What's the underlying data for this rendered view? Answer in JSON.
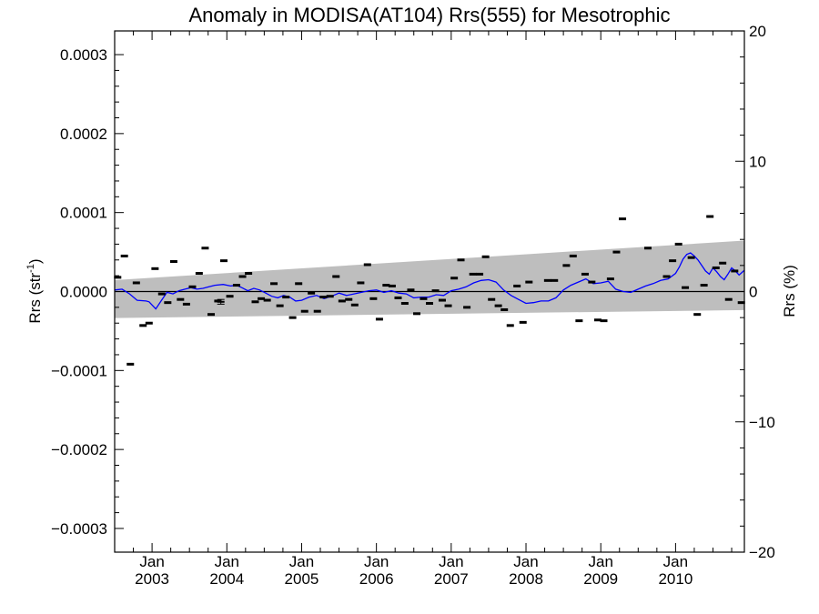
{
  "chart_data": {
    "type": "scatter",
    "title": "Anomaly in MODISA(AT104) Rrs(555) for Mesotrophic",
    "ylabel_left": "Rrs (str",
    "ylabel_left_sup": "-1",
    "ylabel_left_close": ")",
    "ylabel_right": "Rrs (%)",
    "xlim": [
      2002.5,
      2010.92
    ],
    "ylim": [
      -0.00033,
      0.00033
    ],
    "ylim_right": [
      -20,
      20
    ],
    "x_ticks": [
      {
        "month": "Jan",
        "year": "2003",
        "x": 2003.0
      },
      {
        "month": "Jan",
        "year": "2004",
        "x": 2004.0
      },
      {
        "month": "Jan",
        "year": "2005",
        "x": 2005.0
      },
      {
        "month": "Jan",
        "year": "2006",
        "x": 2006.0
      },
      {
        "month": "Jan",
        "year": "2007",
        "x": 2007.0
      },
      {
        "month": "Jan",
        "year": "2008",
        "x": 2008.0
      },
      {
        "month": "Jan",
        "year": "2009",
        "x": 2009.0
      },
      {
        "month": "Jan",
        "year": "2010",
        "x": 2010.0
      }
    ],
    "y_ticks_left": [
      {
        "value": 0.0003,
        "label": "0.0003"
      },
      {
        "value": 0.0002,
        "label": "0.0002"
      },
      {
        "value": 0.0001,
        "label": "0.0001"
      },
      {
        "value": 0.0,
        "label": "0.0000"
      },
      {
        "value": -0.0001,
        "label": "−0.0001"
      },
      {
        "value": -0.0002,
        "label": "−0.0002"
      },
      {
        "value": -0.0003,
        "label": "−0.0003"
      }
    ],
    "y_ticks_right": [
      {
        "value": 20,
        "label": "20"
      },
      {
        "value": 10,
        "label": "10"
      },
      {
        "value": 0,
        "label": "0"
      },
      {
        "value": -10,
        "label": "−10"
      },
      {
        "value": -20,
        "label": "−20"
      }
    ],
    "uncertainty_band": {
      "color": "#bebebe",
      "x": [
        2002.5,
        2010.92
      ],
      "upper": [
        1.45e-05,
        6.45e-05
      ],
      "lower": [
        -3.35e-05,
        -2.35e-05
      ]
    },
    "zero_line": {
      "y": 0.0,
      "color": "#000000"
    },
    "points": {
      "color": "#000000",
      "marker": "short-dash",
      "x": [
        2002.54,
        2002.63,
        2002.71,
        2002.79,
        2002.88,
        2002.96,
        2003.04,
        2003.13,
        2003.21,
        2003.29,
        2003.38,
        2003.46,
        2003.54,
        2003.63,
        2003.71,
        2003.79,
        2003.88,
        2003.96,
        2004.04,
        2004.13,
        2004.21,
        2004.29,
        2004.38,
        2004.46,
        2004.54,
        2004.63,
        2004.71,
        2004.79,
        2004.88,
        2004.96,
        2005.04,
        2005.13,
        2005.21,
        2005.29,
        2005.38,
        2005.46,
        2005.54,
        2005.63,
        2005.71,
        2005.79,
        2005.88,
        2005.96,
        2006.04,
        2006.13,
        2006.21,
        2006.29,
        2006.38,
        2006.46,
        2006.54,
        2006.63,
        2006.71,
        2006.79,
        2006.88,
        2006.96,
        2007.04,
        2007.13,
        2007.21,
        2007.29,
        2007.38,
        2007.46,
        2007.54,
        2007.63,
        2007.71,
        2007.79,
        2007.88,
        2007.96,
        2008.04,
        2008.29,
        2008.38,
        2008.54,
        2008.63,
        2008.71,
        2008.79,
        2008.88,
        2008.96,
        2009.04,
        2009.13,
        2009.21,
        2009.29,
        2009.63,
        2009.88,
        2009.96,
        2010.04,
        2010.13,
        2010.21,
        2010.29,
        2010.38,
        2010.46,
        2010.54,
        2010.63,
        2010.71,
        2010.79,
        2010.88
      ],
      "y": [
        1.8e-05,
        4.5e-05,
        -9.2e-05,
        1.1e-05,
        -4.3e-05,
        -4e-05,
        2.9e-05,
        -3e-06,
        -1.4e-05,
        3.8e-05,
        -1e-05,
        -1.6e-05,
        6e-06,
        2.3e-05,
        5.5e-05,
        -2.9e-05,
        -1.2e-05,
        3.9e-05,
        -6e-06,
        8e-06,
        1.9e-05,
        2.3e-05,
        -1.3e-05,
        -9e-06,
        -1.1e-05,
        1e-05,
        -1.8e-05,
        -7e-06,
        -3.3e-05,
        1e-05,
        -2.5e-05,
        -2e-06,
        -2.5e-05,
        -7e-06,
        -6e-06,
        1.9e-05,
        -1.2e-05,
        -1e-05,
        -1.7e-05,
        1.1e-05,
        3.4e-05,
        -9e-06,
        -3.5e-05,
        8e-06,
        7e-06,
        -8e-06,
        -1.5e-05,
        2e-06,
        -2.8e-05,
        -9e-06,
        -1.5e-05,
        1e-06,
        -1.1e-05,
        -1.8e-05,
        1.7e-05,
        4e-05,
        -2e-05,
        2.2e-05,
        2.2e-05,
        4.4e-05,
        -1e-05,
        -1.8e-05,
        -2.3e-05,
        -4.3e-05,
        7e-06,
        -3.9e-05,
        1.2e-05,
        1.4e-05,
        1.4e-05,
        3.3e-05,
        4.5e-05,
        -3.7e-05,
        2.2e-05,
        1.2e-05,
        -3.6e-05,
        -3.7e-05,
        1.6e-05,
        5e-05,
        9.2e-05,
        5.5e-05,
        1.9e-05,
        3.9e-05,
        6e-05,
        5e-06,
        4.3e-05,
        -2.9e-05,
        8e-06,
        9.5e-05,
        3e-05,
        3.6e-05,
        -1e-05,
        2.6e-05,
        -1.4e-05
      ]
    },
    "error_bar_point": {
      "x": 2003.92,
      "y": -1.3e-05,
      "err": 3e-06
    },
    "running_mean": {
      "color": "#0000ff",
      "x": [
        2002.5,
        2002.6,
        2002.7,
        2002.8,
        2002.92,
        2002.96,
        2003.05,
        2003.12,
        2003.2,
        2003.28,
        2003.36,
        2003.44,
        2003.52,
        2003.6,
        2003.68,
        2003.76,
        2003.84,
        2003.95,
        2004.05,
        2004.13,
        2004.2,
        2004.28,
        2004.36,
        2004.44,
        2004.52,
        2004.6,
        2004.68,
        2004.76,
        2004.84,
        2004.92,
        2005.0,
        2005.1,
        2005.2,
        2005.3,
        2005.4,
        2005.5,
        2005.6,
        2005.7,
        2005.8,
        2005.9,
        2006.0,
        2006.1,
        2006.2,
        2006.3,
        2006.4,
        2006.5,
        2006.6,
        2006.7,
        2006.8,
        2006.9,
        2007.0,
        2007.1,
        2007.2,
        2007.3,
        2007.4,
        2007.5,
        2007.6,
        2007.7,
        2007.8,
        2007.9,
        2008.0,
        2008.1,
        2008.2,
        2008.3,
        2008.4,
        2008.5,
        2008.6,
        2008.7,
        2008.8,
        2008.9,
        2009.0,
        2009.1,
        2009.2,
        2009.3,
        2009.4,
        2009.5,
        2009.6,
        2009.7,
        2009.8,
        2009.9,
        2010.0,
        2010.05,
        2010.1,
        2010.15,
        2010.2,
        2010.25,
        2010.3,
        2010.35,
        2010.4,
        2010.45,
        2010.5,
        2010.55,
        2010.6,
        2010.65,
        2010.7,
        2010.75,
        2010.8,
        2010.85,
        2010.92
      ],
      "y": [
        2e-06,
        3e-06,
        -3e-06,
        -1.1e-05,
        -1.2e-05,
        -1.3e-05,
        -2.2e-05,
        -1.2e-05,
        -1e-06,
        -3e-06,
        1e-06,
        3e-06,
        5e-06,
        3e-06,
        4e-06,
        6e-06,
        8e-06,
        9e-06,
        7e-06,
        8e-06,
        5e-06,
        1e-06,
        4e-06,
        2e-06,
        -2e-06,
        -6e-06,
        -8e-06,
        -5e-06,
        -7e-06,
        -1.2e-05,
        -1.1e-05,
        -7e-06,
        -5e-06,
        -9e-06,
        -6e-06,
        -2e-06,
        -5e-06,
        -3e-06,
        -1e-06,
        1e-06,
        2e-06,
        -1e-06,
        1e-06,
        -2e-06,
        -3e-06,
        -8e-06,
        -7e-06,
        -7e-06,
        -4e-06,
        -5e-06,
        1e-06,
        3e-06,
        6e-06,
        1.1e-05,
        1.4e-05,
        1.5e-05,
        1.2e-05,
        2e-06,
        -5e-06,
        -1e-05,
        -1.5e-05,
        -1.4e-05,
        -1.2e-05,
        -1.2e-05,
        -8e-06,
        2e-06,
        8e-06,
        1.2e-05,
        1.6e-05,
        1e-05,
        1.1e-05,
        1.3e-05,
        3e-06,
        0.0,
        -1e-06,
        3e-06,
        7e-06,
        1e-05,
        1.4e-05,
        1.6e-05,
        2.3e-05,
        3.1e-05,
        4.1e-05,
        4.7e-05,
        4.9e-05,
        4.5e-05,
        4e-05,
        3.3e-05,
        2.6e-05,
        2.2e-05,
        3e-05,
        2.5e-05,
        1.9e-05,
        1.5e-05,
        2.2e-05,
        3e-05,
        2.6e-05,
        2.1e-05,
        2.7e-05
      ]
    }
  }
}
